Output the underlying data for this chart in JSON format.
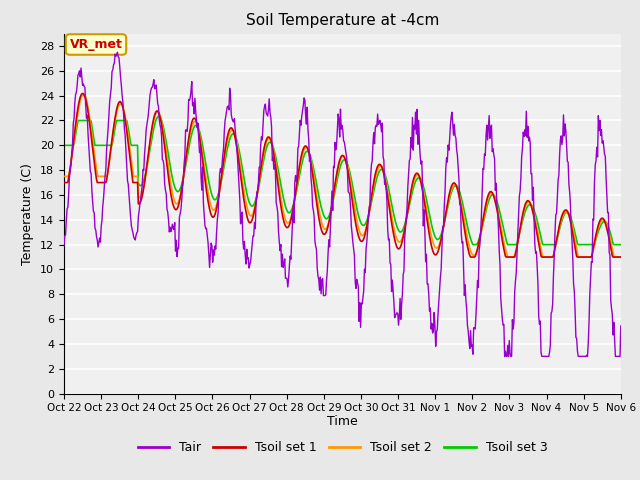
{
  "title": "Soil Temperature at -4cm",
  "xlabel": "Time",
  "ylabel": "Temperature (C)",
  "ylim": [
    0,
    29
  ],
  "yticks": [
    0,
    2,
    4,
    6,
    8,
    10,
    12,
    14,
    16,
    18,
    20,
    22,
    24,
    26,
    28
  ],
  "xtick_labels": [
    "Oct 22",
    "Oct 23",
    "Oct 24",
    "Oct 25",
    "Oct 26",
    "Oct 27",
    "Oct 28",
    "Oct 29",
    "Oct 30",
    "Oct 31",
    "Nov 1",
    "Nov 2",
    "Nov 3",
    "Nov 4",
    "Nov 5",
    "Nov 6"
  ],
  "colors": {
    "Tair": "#9900cc",
    "Tsoil1": "#cc0000",
    "Tsoil2": "#ff9900",
    "Tsoil3": "#00cc00"
  },
  "bg_color": "#e8e8e8",
  "plot_bg": "#f0f0f0",
  "annotation_text": "VR_met",
  "annotation_bg": "#ffffcc",
  "annotation_border": "#cc9900",
  "annotation_text_color": "#cc0000",
  "legend_labels": [
    "Tair",
    "Tsoil set 1",
    "Tsoil set 2",
    "Tsoil set 3"
  ],
  "num_days": 15,
  "points_per_day": 48,
  "figwidth": 6.4,
  "figheight": 4.8,
  "dpi": 100
}
